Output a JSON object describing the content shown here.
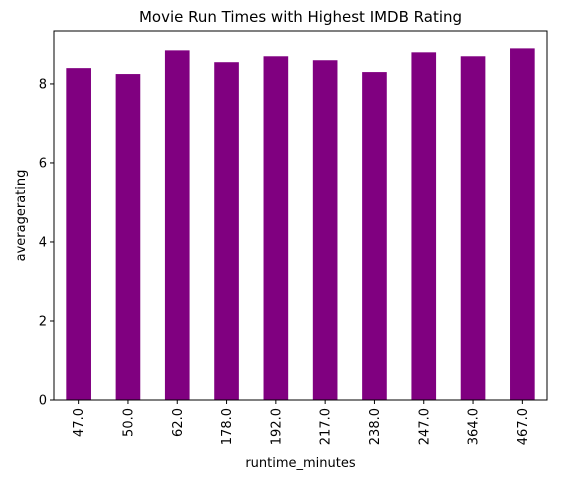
{
  "chart_data": {
    "type": "bar",
    "title": "Movie Run Times with Highest IMDB Rating",
    "xlabel": "runtime_minutes",
    "ylabel": "averagerating",
    "categories": [
      "47.0",
      "50.0",
      "62.0",
      "178.0",
      "192.0",
      "217.0",
      "238.0",
      "247.0",
      "364.0",
      "467.0"
    ],
    "values": [
      8.4,
      8.25,
      8.85,
      8.55,
      8.7,
      8.6,
      8.3,
      8.8,
      8.7,
      8.9
    ],
    "ylim": [
      0,
      9.34
    ],
    "yticks": [
      0,
      2,
      4,
      6,
      8
    ],
    "bar_color": "#800080",
    "grid": false,
    "legend": false
  }
}
